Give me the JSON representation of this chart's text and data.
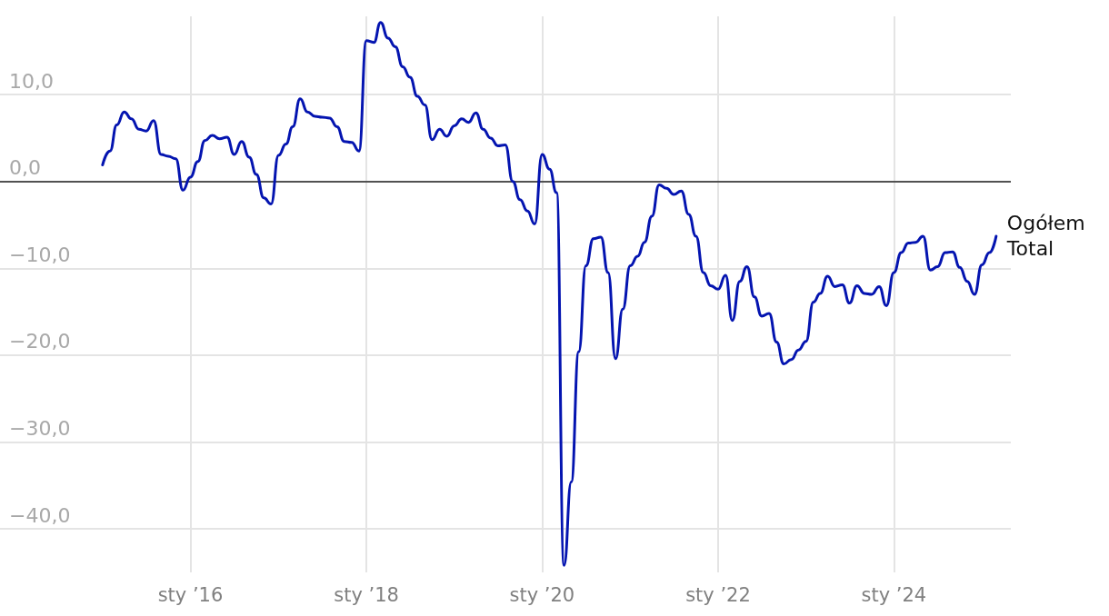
{
  "chart_data": {
    "type": "line",
    "x": [
      "2015-01",
      "2015-02",
      "2015-03",
      "2015-04",
      "2015-05",
      "2015-06",
      "2015-07",
      "2015-08",
      "2015-09",
      "2015-10",
      "2015-11",
      "2015-12",
      "2016-01",
      "2016-02",
      "2016-03",
      "2016-04",
      "2016-05",
      "2016-06",
      "2016-07",
      "2016-08",
      "2016-09",
      "2016-10",
      "2016-11",
      "2016-12",
      "2017-01",
      "2017-02",
      "2017-03",
      "2017-04",
      "2017-05",
      "2017-06",
      "2017-07",
      "2017-08",
      "2017-09",
      "2017-10",
      "2017-11",
      "2017-12",
      "2018-01",
      "2018-02",
      "2018-03",
      "2018-04",
      "2018-05",
      "2018-06",
      "2018-07",
      "2018-08",
      "2018-09",
      "2018-10",
      "2018-11",
      "2018-12",
      "2019-01",
      "2019-02",
      "2019-03",
      "2019-04",
      "2019-05",
      "2019-06",
      "2019-07",
      "2019-08",
      "2019-09",
      "2019-10",
      "2019-11",
      "2019-12",
      "2020-01",
      "2020-02",
      "2020-03",
      "2020-04",
      "2020-05",
      "2020-06",
      "2020-07",
      "2020-08",
      "2020-09",
      "2020-10",
      "2020-11",
      "2020-12",
      "2021-01",
      "2021-02",
      "2021-03",
      "2021-04",
      "2021-05",
      "2021-06",
      "2021-07",
      "2021-08",
      "2021-09",
      "2021-10",
      "2021-11",
      "2021-12",
      "2022-01",
      "2022-02",
      "2022-03",
      "2022-04",
      "2022-05",
      "2022-06",
      "2022-07",
      "2022-08",
      "2022-09",
      "2022-10",
      "2022-11",
      "2022-12",
      "2023-01",
      "2023-02",
      "2023-03",
      "2023-04",
      "2023-05",
      "2023-06",
      "2023-07",
      "2023-08",
      "2023-09",
      "2023-10",
      "2023-11",
      "2023-12",
      "2024-01",
      "2024-02",
      "2024-03",
      "2024-04",
      "2024-05",
      "2024-06",
      "2024-07",
      "2024-08",
      "2024-09",
      "2024-10",
      "2024-11",
      "2024-12",
      "2025-01",
      "2025-02",
      "2025-03"
    ],
    "series": [
      {
        "name": "Ogółem\nTotal",
        "color": "#0414b0",
        "values": [
          1.9,
          3.5,
          6.5,
          8.0,
          7.2,
          6.0,
          5.8,
          7.0,
          3.1,
          2.9,
          2.6,
          -1.0,
          0.5,
          2.3,
          4.7,
          5.3,
          4.9,
          5.1,
          3.1,
          4.6,
          2.8,
          0.8,
          -1.9,
          -2.6,
          3.0,
          4.3,
          6.3,
          9.5,
          8.0,
          7.5,
          7.4,
          7.3,
          6.3,
          4.6,
          4.5,
          3.5,
          16.2,
          16.0,
          18.3,
          16.5,
          15.5,
          13.2,
          12.0,
          9.8,
          8.8,
          4.8,
          6.0,
          5.2,
          6.4,
          7.2,
          6.8,
          7.9,
          6.0,
          5.0,
          4.1,
          4.2,
          0.0,
          -2.1,
          -3.4,
          -4.9,
          3.1,
          1.4,
          -1.3,
          -44.2,
          -34.6,
          -19.6,
          -9.7,
          -6.6,
          -6.4,
          -10.5,
          -20.4,
          -14.7,
          -9.7,
          -8.6,
          -7.0,
          -4.0,
          -0.4,
          -0.8,
          -1.5,
          -1.1,
          -3.8,
          -6.3,
          -10.5,
          -12.0,
          -12.4,
          -10.8,
          -16.0,
          -11.5,
          -9.8,
          -13.3,
          -15.5,
          -15.2,
          -18.5,
          -21.0,
          -20.5,
          -19.4,
          -18.4,
          -13.9,
          -12.9,
          -10.9,
          -12.1,
          -11.9,
          -14.0,
          -12.0,
          -12.9,
          -13.0,
          -12.1,
          -14.3,
          -10.5,
          -8.2,
          -7.1,
          -7.0,
          -6.3,
          -10.2,
          -9.8,
          -8.2,
          -8.1,
          -9.9,
          -11.5,
          -13.0,
          -9.6,
          -8.2,
          -6.3
        ]
      }
    ],
    "xlim": [
      "2013-11",
      "2025-05"
    ],
    "xticks": [
      {
        "value": "2016-01",
        "label": "sty ’16"
      },
      {
        "value": "2018-01",
        "label": "sty ’18"
      },
      {
        "value": "2020-01",
        "label": "sty ’20"
      },
      {
        "value": "2022-01",
        "label": "sty ’22"
      },
      {
        "value": "2024-01",
        "label": "sty ’24"
      }
    ],
    "ylim": [
      -45,
      19
    ],
    "yticks": [
      {
        "value": -40,
        "label": "−40,0"
      },
      {
        "value": -30,
        "label": "−30,0"
      },
      {
        "value": -20,
        "label": "−20,0"
      },
      {
        "value": -10,
        "label": "−10,0"
      },
      {
        "value": 0,
        "label": "0,0"
      },
      {
        "value": 10,
        "label": "10,0"
      }
    ],
    "ref_lines": [
      {
        "axis": "y",
        "value": 0,
        "color": "#222222"
      }
    ],
    "grid": true,
    "legend": false,
    "marker": "none",
    "line_style": "solid"
  }
}
